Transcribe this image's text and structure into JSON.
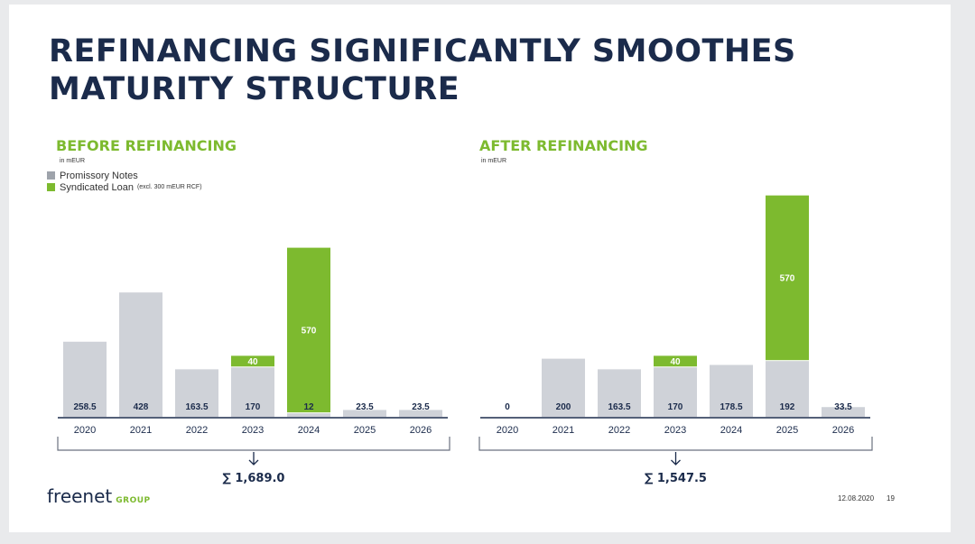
{
  "slide": {
    "title_line1": "REFINANCING SIGNIFICANTLY SMOOTHES",
    "title_line2": "MATURITY STRUCTURE",
    "footer_logo": "freenet",
    "footer_logo_suffix": "GROUP",
    "footer_date": "12.08.2020",
    "footer_page": "19"
  },
  "legend": {
    "promissory_notes": "Promissory Notes",
    "syndicated_loan": "Syndicated Loan",
    "syndicated_loan_note": "(excl. 300 mEUR RCF)"
  },
  "colors": {
    "promissory": "#cfd2d8",
    "syndicated": "#7dba2f",
    "title": "#1b2b4b",
    "accent": "#7dba2f"
  },
  "chart_data": [
    {
      "type": "bar",
      "title": "BEFORE REFINANCING",
      "unit": "in mEUR",
      "categories": [
        "2020",
        "2021",
        "2022",
        "2023",
        "2024",
        "2025",
        "2026"
      ],
      "series": [
        {
          "name": "Promissory Notes",
          "values": [
            258.5,
            428,
            163.5,
            170,
            12,
            23.5,
            23.5
          ]
        },
        {
          "name": "Syndicated Loan",
          "values": [
            0,
            0,
            0,
            40,
            570,
            0,
            0
          ]
        }
      ],
      "total_label": "∑ 1,689.0"
    },
    {
      "type": "bar",
      "title": "AFTER REFINANCING",
      "unit": "in mEUR",
      "categories": [
        "2020",
        "2021",
        "2022",
        "2023",
        "2024",
        "2025",
        "2026"
      ],
      "series": [
        {
          "name": "Promissory Notes",
          "values": [
            0,
            200,
            163.5,
            170,
            178.5,
            192,
            33.5
          ]
        },
        {
          "name": "Syndicated Loan",
          "values": [
            0,
            0,
            0,
            40,
            0,
            570,
            0
          ]
        }
      ],
      "total_label": "∑ 1,547.5"
    }
  ]
}
